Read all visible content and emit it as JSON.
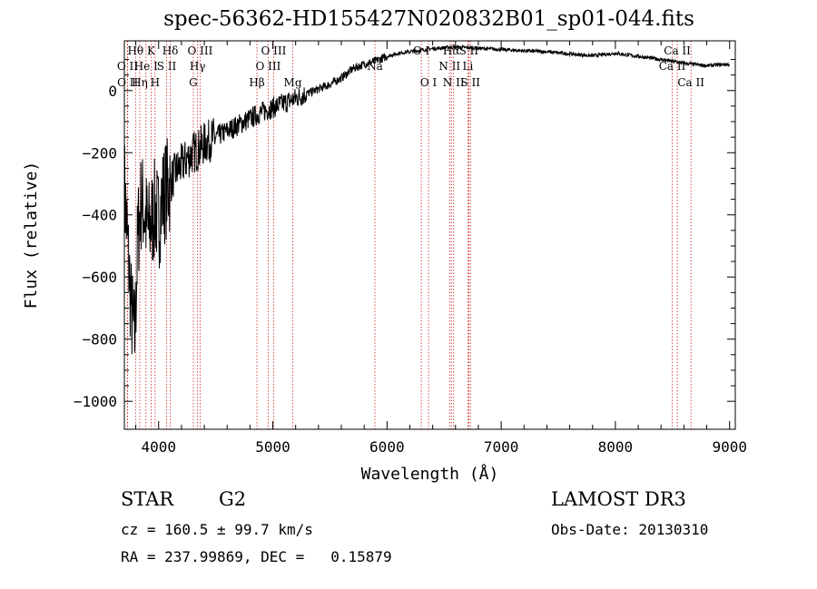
{
  "chart_data": {
    "type": "line",
    "title": "spec-56362-HD155427N020832B01_sp01-044.fits",
    "xlabel": "Wavelength (Å)",
    "ylabel": "Flux (relative)",
    "xlim": [
      3700,
      9050
    ],
    "ylim": [
      -1090,
      160
    ],
    "x_ticks": [
      4000,
      5000,
      6000,
      7000,
      8000,
      9000
    ],
    "x_tick_labels": [
      "4000",
      "5000",
      "6000",
      "7000",
      "8000",
      "9000"
    ],
    "y_ticks": [
      0,
      -200,
      -400,
      -600,
      -800,
      -1000
    ],
    "y_tick_labels": [
      "0",
      "−200",
      "−400",
      "−600",
      "−800",
      "−1000"
    ],
    "series": [
      {
        "name": "flux",
        "x": [
          3700,
          3730,
          3760,
          3790,
          3820,
          3850,
          3880,
          3910,
          3940,
          3970,
          4000,
          4030,
          4060,
          4100,
          4150,
          4200,
          4250,
          4300,
          4350,
          4400,
          4500,
          4600,
          4700,
          4800,
          4900,
          5000,
          5100,
          5200,
          5300,
          5400,
          5500,
          5600,
          5700,
          5800,
          5900,
          6000,
          6100,
          6200,
          6300,
          6400,
          6500,
          6600,
          6700,
          6800,
          6900,
          7000,
          7200,
          7400,
          7600,
          7800,
          8000,
          8200,
          8400,
          8600,
          8800,
          9000
        ],
        "values": [
          -300,
          -500,
          -700,
          -800,
          -450,
          -350,
          -400,
          -450,
          -420,
          -380,
          -420,
          -350,
          -320,
          -300,
          -260,
          -240,
          -220,
          -200,
          -190,
          -170,
          -150,
          -130,
          -110,
          -90,
          -70,
          -55,
          -40,
          -25,
          -10,
          5,
          20,
          40,
          70,
          85,
          95,
          110,
          120,
          125,
          130,
          135,
          138,
          140,
          138,
          136,
          134,
          132,
          128,
          125,
          118,
          112,
          120,
          110,
          100,
          88,
          80,
          85
        ]
      }
    ],
    "lines": [
      {
        "label": "O II",
        "wavelength": 3727,
        "row": 2
      },
      {
        "label": "O II",
        "wavelength": 3729,
        "row": 3
      },
      {
        "label": "Hθ",
        "wavelength": 3798,
        "row": 1
      },
      {
        "label": "Hη",
        "wavelength": 3835,
        "row": 3
      },
      {
        "label": "He I",
        "wavelength": 3889,
        "row": 2
      },
      {
        "label": "K",
        "wavelength": 3934,
        "row": 1
      },
      {
        "label": "H",
        "wavelength": 3969,
        "row": 3
      },
      {
        "label": "S II",
        "wavelength": 4070,
        "row": 2
      },
      {
        "label": "Hδ",
        "wavelength": 4102,
        "row": 1
      },
      {
        "label": "G",
        "wavelength": 4304,
        "row": 3
      },
      {
        "label": "Hγ",
        "wavelength": 4341,
        "row": 2
      },
      {
        "label": "O III",
        "wavelength": 4363,
        "row": 1
      },
      {
        "label": "Hβ",
        "wavelength": 4861,
        "row": 3
      },
      {
        "label": "O III",
        "wavelength": 4959,
        "row": 2
      },
      {
        "label": "O III",
        "wavelength": 5007,
        "row": 1
      },
      {
        "label": "Mg",
        "wavelength": 5175,
        "row": 3
      },
      {
        "label": "Na",
        "wavelength": 5894,
        "row": 2
      },
      {
        "label": "O I",
        "wavelength": 6300,
        "row": 1
      },
      {
        "label": "O I",
        "wavelength": 6364,
        "row": 3
      },
      {
        "label": "N II",
        "wavelength": 6548,
        "row": 2
      },
      {
        "label": "Hα",
        "wavelength": 6563,
        "row": 1
      },
      {
        "label": "N II",
        "wavelength": 6583,
        "row": 3
      },
      {
        "label": "Li",
        "wavelength": 6708,
        "row": 2
      },
      {
        "label": "S II",
        "wavelength": 6716,
        "row": 1
      },
      {
        "label": "S II",
        "wavelength": 6731,
        "row": 3
      },
      {
        "label": "Ca II",
        "wavelength": 8498,
        "row": 2
      },
      {
        "label": "Ca II",
        "wavelength": 8542,
        "row": 1
      },
      {
        "label": "Ca II",
        "wavelength": 8662,
        "row": 3
      }
    ]
  },
  "info": {
    "class": "STAR",
    "subclass": "G2",
    "survey": "LAMOST DR3",
    "cz": "cz = 160.5 ± 99.7 km/s",
    "obs_date": "Obs-Date: 20130310",
    "coords": "RA = 237.99869, DEC =   0.15879"
  },
  "colors": {
    "line_marker": "#cc2222",
    "spectrum": "#000000"
  }
}
